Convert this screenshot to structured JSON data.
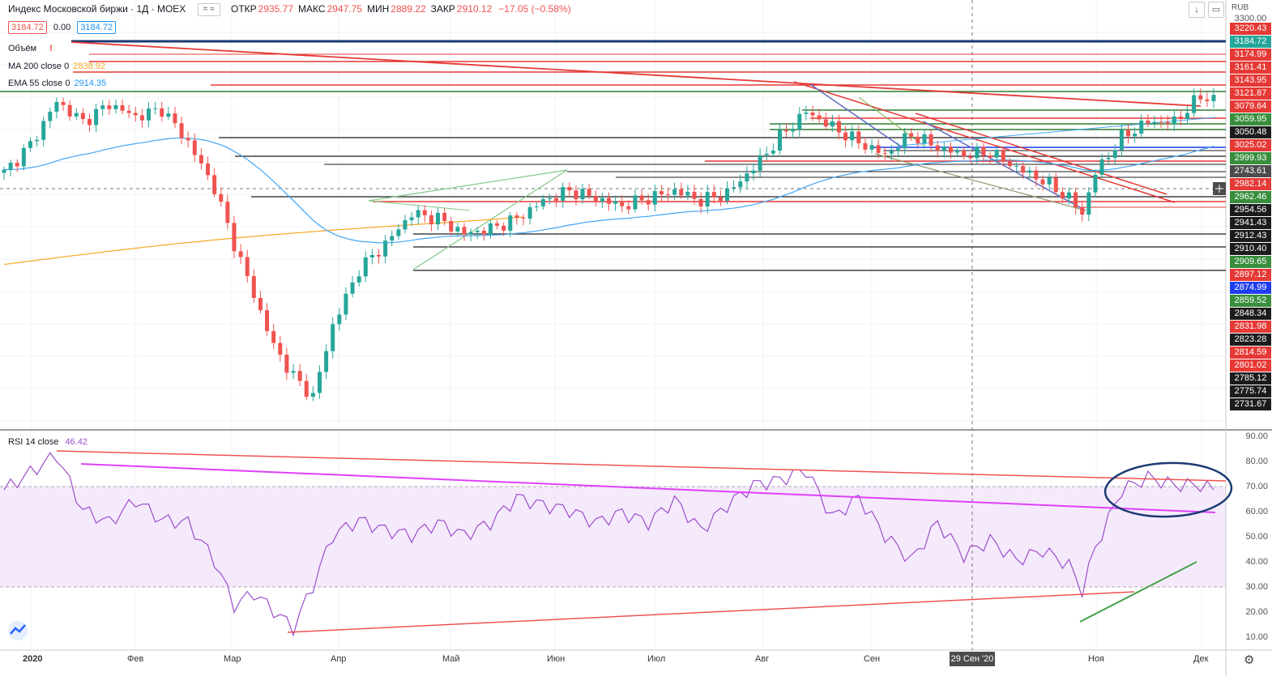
{
  "header": {
    "title": "Индекс Московской биржи · 1Д · MOEX",
    "ohlc": [
      {
        "k": "ОТКР",
        "v": "2935.77"
      },
      {
        "k": "МАКС",
        "v": "2947.75"
      },
      {
        "k": "МИН",
        "v": "2889.22"
      },
      {
        "k": "ЗАКР",
        "v": "2910.12"
      },
      {
        "k": "",
        "v": "−17.05 (−0.58%)"
      }
    ],
    "price_bid": "3184.72",
    "spread": "0.00",
    "price_ask": "3184.72",
    "currency": "RUB"
  },
  "indicators": {
    "volume": "Объём",
    "ma200_label": "MA 200 close 0",
    "ma200_value": "2838.92",
    "ema55_label": "EMA 55 close 0",
    "ema55_value": "2914.35",
    "rsi_label": "RSI 14 close",
    "rsi_value": "46.42"
  },
  "price_axis_labels": [
    {
      "v": "3300.00",
      "c": "none"
    },
    {
      "v": "3220.43",
      "c": "#e53935"
    },
    {
      "v": "3184.72",
      "c": "#26a69a"
    },
    {
      "v": "3174.99",
      "c": "#e53935"
    },
    {
      "v": "3161.41",
      "c": "#e53935"
    },
    {
      "v": "3143.95",
      "c": "#e53935"
    },
    {
      "v": "3121.87",
      "c": "#e53935"
    },
    {
      "v": "3079.64",
      "c": "#e53935"
    },
    {
      "v": "3059.95",
      "c": "#388e3c"
    },
    {
      "v": "3050.48",
      "c": "#1c1c1c"
    },
    {
      "v": "3025.02",
      "c": "#e53935"
    },
    {
      "v": "2999.93",
      "c": "#388e3c"
    },
    {
      "v": "2743.61",
      "c": "#4c4c4c"
    },
    {
      "v": "2982.14",
      "c": "#e53935"
    },
    {
      "v": "2962.46",
      "c": "#388e3c"
    },
    {
      "v": "2954.56",
      "c": "#1c1c1c"
    },
    {
      "v": "2941.43",
      "c": "#1c1c1c"
    },
    {
      "v": "2912.43",
      "c": "#1c1c1c"
    },
    {
      "v": "2910.40",
      "c": "#1c1c1c"
    },
    {
      "v": "2909.65",
      "c": "#388e3c"
    },
    {
      "v": "2897.12",
      "c": "#e53935"
    },
    {
      "v": "2874.99",
      "c": "#1e3ef0"
    },
    {
      "v": "2859.52",
      "c": "#388e3c"
    },
    {
      "v": "2848.34",
      "c": "#1c1c1c"
    },
    {
      "v": "2831.98",
      "c": "#e53935"
    },
    {
      "v": "2823.28",
      "c": "#1c1c1c"
    },
    {
      "v": "2814.59",
      "c": "#e53935"
    },
    {
      "v": "2801.02",
      "c": "#e53935"
    },
    {
      "v": "2785.12",
      "c": "#1c1c1c"
    },
    {
      "v": "2775.74",
      "c": "#1c1c1c"
    },
    {
      "v": "2731.67",
      "c": "#1c1c1c"
    }
  ],
  "rsi_axis_ticks": [
    "90.00",
    "80.00",
    "70.00",
    "60.00",
    "50.00",
    "40.00",
    "30.00",
    "20.00",
    "10.00"
  ],
  "time_axis": [
    "2020",
    "Фев",
    "Мар",
    "Апр",
    "Май",
    "Июн",
    "Июл",
    "Авг",
    "Сен",
    "Ноя",
    "Дек"
  ],
  "cursor_date": "29 Сен '20",
  "colors": {
    "up": "#26a69a",
    "down": "#ef5350",
    "ma200": "#f5a623",
    "ema55": "#42a5f5",
    "rsi": "#9c4dcc",
    "accent": "#2962ff"
  },
  "icons": [
    "compare-icon",
    "scroll-down-icon",
    "maximize-icon",
    "settings-icon",
    "tradingview-logo-icon"
  ],
  "chart_data": {
    "type": "candlestick",
    "title": "Индекс Московской биржи · 1Д · MOEX",
    "xlabel": "",
    "ylabel": "",
    "price_panel_ylim": [
      2600,
      3300
    ],
    "rsi_panel_ylim": [
      0,
      100
    ],
    "rsi_bands": [
      30,
      70
    ],
    "price_path": [
      [
        0,
        3040
      ],
      [
        4,
        3095
      ],
      [
        8,
        3180
      ],
      [
        12,
        3140
      ],
      [
        16,
        3175
      ],
      [
        20,
        3150
      ],
      [
        24,
        3165
      ],
      [
        28,
        3100
      ],
      [
        32,
        3010
      ],
      [
        35,
        2900
      ],
      [
        38,
        2800
      ],
      [
        41,
        2700
      ],
      [
        44,
        2640
      ],
      [
        47,
        2600
      ],
      [
        50,
        2740
      ],
      [
        54,
        2850
      ],
      [
        58,
        2900
      ],
      [
        62,
        2960
      ],
      [
        66,
        2950
      ],
      [
        70,
        2920
      ],
      [
        74,
        2930
      ],
      [
        78,
        2950
      ],
      [
        82,
        2985
      ],
      [
        86,
        3005
      ],
      [
        90,
        2990
      ],
      [
        94,
        2975
      ],
      [
        98,
        2990
      ],
      [
        102,
        3005
      ],
      [
        106,
        2985
      ],
      [
        110,
        3000
      ],
      [
        114,
        3050
      ],
      [
        118,
        3110
      ],
      [
        122,
        3160
      ],
      [
        126,
        3130
      ],
      [
        130,
        3100
      ],
      [
        134,
        3075
      ],
      [
        138,
        3115
      ],
      [
        142,
        3090
      ],
      [
        146,
        3075
      ],
      [
        150,
        3080
      ],
      [
        154,
        3050
      ],
      [
        158,
        3025
      ],
      [
        162,
        2990
      ],
      [
        164,
        2960
      ],
      [
        166,
        3040
      ],
      [
        170,
        3110
      ],
      [
        174,
        3140
      ],
      [
        178,
        3140
      ],
      [
        182,
        3190
      ],
      [
        184,
        3184.72
      ]
    ],
    "rsi_path": [
      [
        0,
        68
      ],
      [
        4,
        75
      ],
      [
        8,
        82
      ],
      [
        12,
        60
      ],
      [
        16,
        55
      ],
      [
        20,
        64
      ],
      [
        24,
        56
      ],
      [
        28,
        55
      ],
      [
        32,
        40
      ],
      [
        35,
        22
      ],
      [
        38,
        27
      ],
      [
        41,
        20
      ],
      [
        44,
        13
      ],
      [
        47,
        30
      ],
      [
        50,
        50
      ],
      [
        54,
        56
      ],
      [
        58,
        52
      ],
      [
        62,
        50
      ],
      [
        66,
        55
      ],
      [
        70,
        50
      ],
      [
        74,
        55
      ],
      [
        78,
        65
      ],
      [
        82,
        62
      ],
      [
        86,
        60
      ],
      [
        90,
        55
      ],
      [
        94,
        59
      ],
      [
        98,
        55
      ],
      [
        102,
        64
      ],
      [
        106,
        52
      ],
      [
        110,
        62
      ],
      [
        114,
        70
      ],
      [
        118,
        72
      ],
      [
        122,
        76
      ],
      [
        126,
        57
      ],
      [
        130,
        65
      ],
      [
        134,
        50
      ],
      [
        138,
        40
      ],
      [
        142,
        55
      ],
      [
        146,
        42
      ],
      [
        150,
        48
      ],
      [
        154,
        40
      ],
      [
        158,
        44
      ],
      [
        162,
        38
      ],
      [
        164,
        28
      ],
      [
        166,
        45
      ],
      [
        170,
        68
      ],
      [
        174,
        73
      ],
      [
        178,
        70
      ],
      [
        182,
        70
      ],
      [
        184,
        68
      ]
    ]
  }
}
